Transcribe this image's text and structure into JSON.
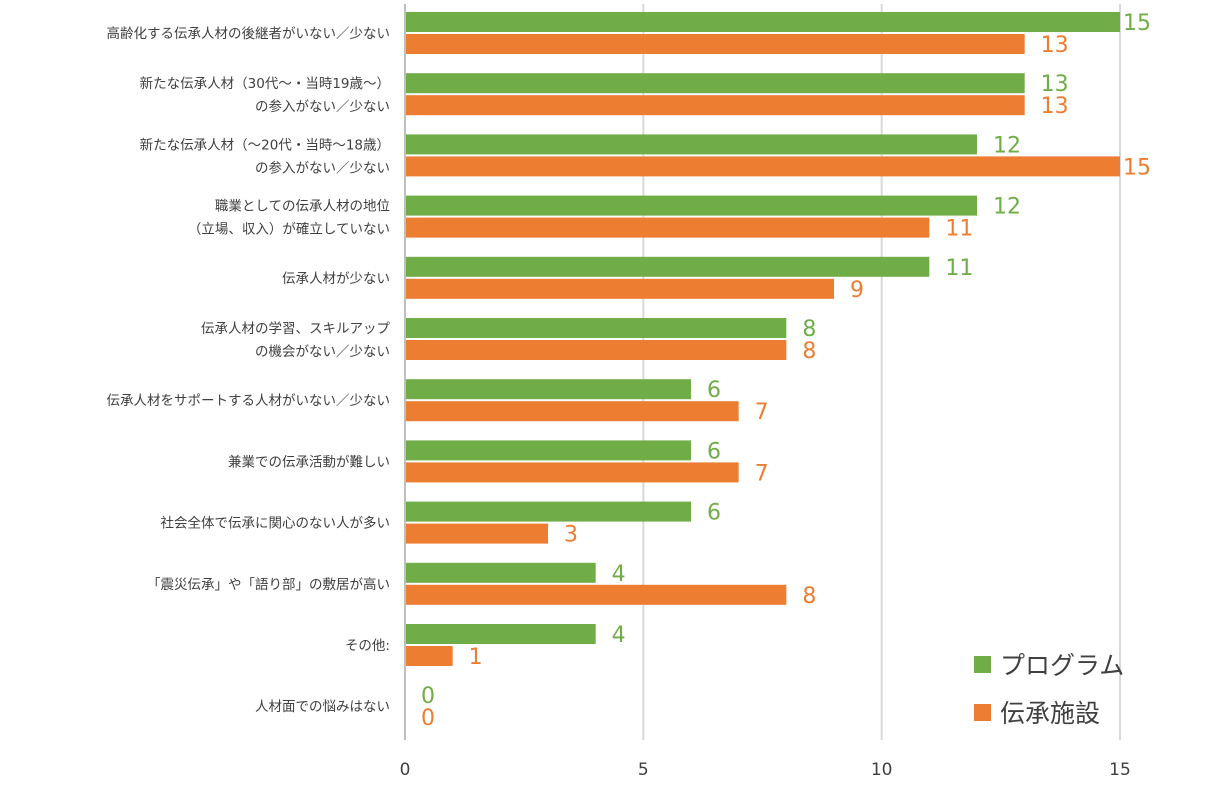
{
  "chart_data": {
    "type": "bar",
    "orientation": "horizontal",
    "categories": [
      [
        "高齢化する伝承人材の後継者がいない／少ない"
      ],
      [
        "新たな伝承人材（30代～・当時19歳～）",
        "の参入がない／少ない"
      ],
      [
        "新たな伝承人材（～20代・当時～18歳）",
        "の参入がない／少ない"
      ],
      [
        "職業としての伝承人材の地位",
        "（立場、収入）が確立していない"
      ],
      [
        "伝承人材が少ない"
      ],
      [
        "伝承人材の学習、スキルアップ",
        "の機会がない／少ない"
      ],
      [
        "伝承人材をサポートする人材がいない／少ない"
      ],
      [
        "兼業での伝承活動が難しい"
      ],
      [
        "社会全体で伝承に関心のない人が多い"
      ],
      [
        "「震災伝承」や「語り部」の敷居が高い"
      ],
      [
        "その他:"
      ],
      [
        "人材面での悩みはない"
      ]
    ],
    "series": [
      {
        "name": "プログラム",
        "color": "#70AD47",
        "values": [
          15,
          13,
          12,
          12,
          11,
          8,
          6,
          6,
          6,
          4,
          4,
          0
        ]
      },
      {
        "name": "伝承施設",
        "color": "#ED7D31",
        "values": [
          13,
          13,
          15,
          11,
          9,
          8,
          7,
          7,
          3,
          8,
          1,
          0
        ]
      }
    ],
    "x_ticks": [
      0,
      5,
      10,
      15
    ],
    "xlim": [
      0,
      15
    ],
    "grid": true,
    "legend_position": "bottom-right"
  }
}
